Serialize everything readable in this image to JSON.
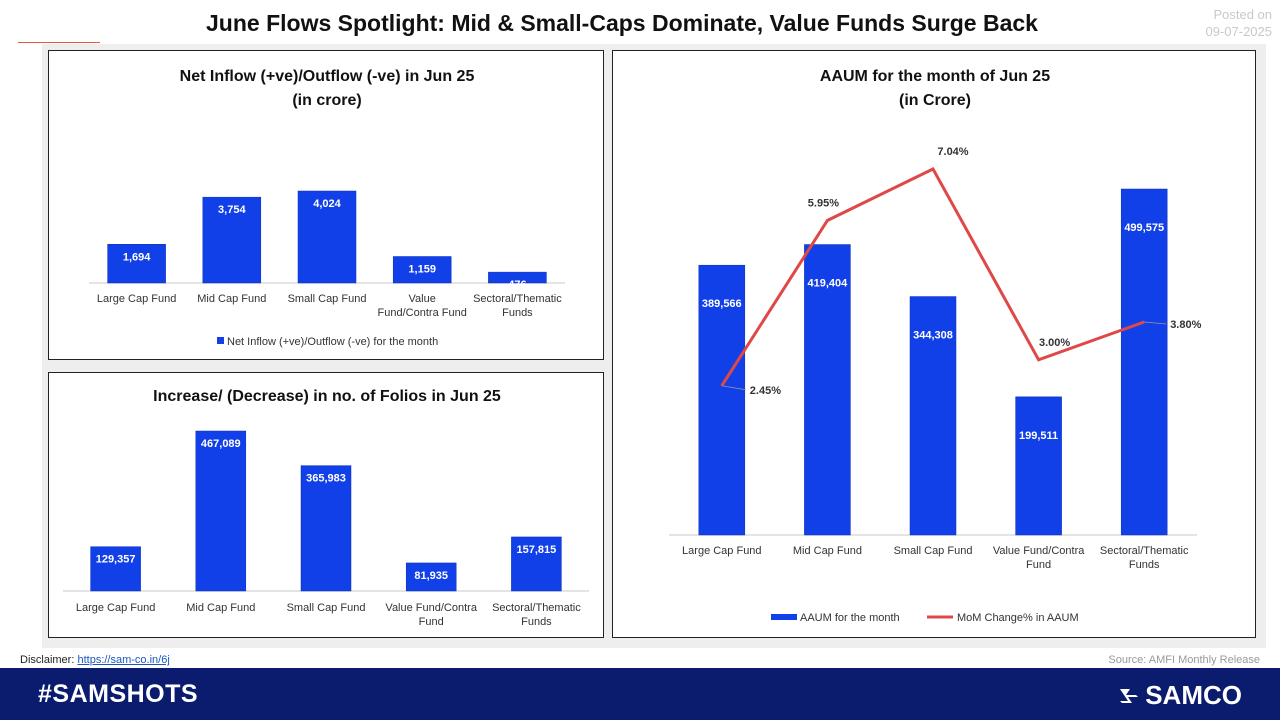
{
  "header": {
    "title": "June Flows Spotlight: Mid & Small-Caps Dominate, Value Funds Surge Back",
    "posted_label": "Posted on",
    "posted_date": "09-07-2025"
  },
  "footer": {
    "disclaimer_label": "Disclaimer:",
    "disclaimer_link": "https://sam-co.in/6j",
    "source": "Source: AMFI Monthly Release",
    "hashtag": "#SAMSHOTS",
    "brand": "SAMCO",
    "brand_icon": "samco-s-logo-icon"
  },
  "colors": {
    "bar": "#1240e8",
    "line": "#e04848",
    "footer_bg": "#0b1b6e"
  },
  "chart_data": [
    {
      "type": "bar",
      "title": "Net Inflow (+ve)/Outflow (-ve) in Jun 25",
      "subtitle": "(in crore)",
      "categories": [
        "Large Cap Fund",
        "Mid Cap Fund",
        "Small Cap Fund",
        "Value Fund/Contra Fund",
        "Sectoral/Thematic Funds"
      ],
      "category_lines": [
        [
          "Large Cap Fund"
        ],
        [
          "Mid Cap Fund"
        ],
        [
          "Small Cap Fund"
        ],
        [
          "Value",
          "Fund/Contra Fund"
        ],
        [
          "Sectoral/Thematic",
          "Funds"
        ]
      ],
      "series": [
        {
          "name": "Net Inflow (+ve)/Outflow (-ve) for the month",
          "values": [
            1694,
            3754,
            4024,
            1159,
            476
          ]
        }
      ],
      "value_labels": [
        "1,694",
        "3,754",
        "4,024",
        "1,159",
        "476"
      ],
      "ylim": [
        0,
        4024
      ],
      "legend": "bottom",
      "grid": false
    },
    {
      "type": "bar",
      "title": "Increase/ (Decrease) in no. of Folios in Jun 25",
      "categories": [
        "Large Cap Fund",
        "Mid Cap Fund",
        "Small Cap Fund",
        "Value Fund/Contra Fund",
        "Sectoral/Thematic Funds"
      ],
      "category_lines": [
        [
          "Large Cap Fund"
        ],
        [
          "Mid Cap Fund"
        ],
        [
          "Small Cap Fund"
        ],
        [
          "Value Fund/Contra",
          "Fund"
        ],
        [
          "Sectoral/Thematic",
          "Funds"
        ]
      ],
      "series": [
        {
          "values": [
            129357,
            467089,
            365983,
            81935,
            157815
          ]
        }
      ],
      "value_labels": [
        "129,357",
        "467,089",
        "365,983",
        "81,935",
        "157,815"
      ],
      "ylim": [
        0,
        467089
      ],
      "legend": "none",
      "grid": false
    },
    {
      "type": "bar",
      "title": "AAUM for the month of Jun 25",
      "subtitle": "(in Crore)",
      "categories": [
        "Large Cap Fund",
        "Mid Cap Fund",
        "Small Cap Fund",
        "Value Fund/Contra Fund",
        "Sectoral/Thematic Funds"
      ],
      "category_lines": [
        [
          "Large Cap Fund"
        ],
        [
          "Mid Cap Fund"
        ],
        [
          "Small Cap Fund"
        ],
        [
          "Value Fund/Contra",
          "Fund"
        ],
        [
          "Sectoral/Thematic",
          "Funds"
        ]
      ],
      "series": [
        {
          "name": "AAUM for the month",
          "type": "bar",
          "values": [
            389566,
            419404,
            344308,
            199511,
            499575
          ],
          "value_labels": [
            "389,566",
            "419,404",
            "344,308",
            "199,511",
            "499,575"
          ]
        },
        {
          "name": "MoM Change% in AAUM",
          "type": "line",
          "values": [
            2.45,
            5.95,
            7.04,
            3.0,
            3.8
          ],
          "value_labels": [
            "2.45%",
            "5.95%",
            "7.04%",
            "3.00%",
            "3.80%"
          ]
        }
      ],
      "ylim": [
        0,
        499575
      ],
      "y2lim": [
        0,
        7.04
      ],
      "legend": "bottom",
      "grid": false
    }
  ]
}
